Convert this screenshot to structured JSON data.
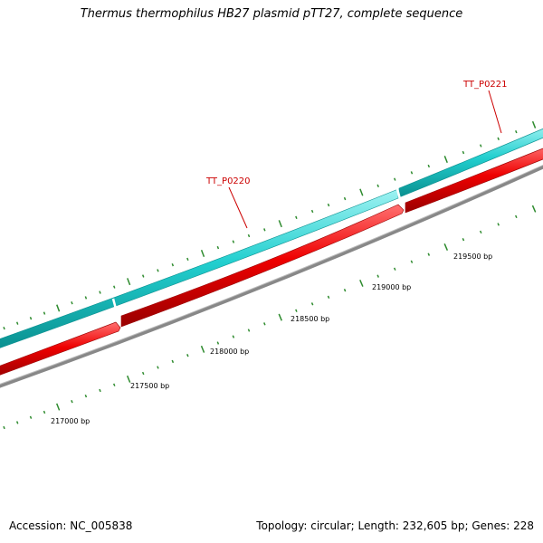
{
  "title": "Thermus thermophilus HB27 plasmid pTT27, complete sequence",
  "footer": {
    "accession": "Accession: NC_005838",
    "summary": "Topology: circular; Length: 232,605 bp; Genes: 228"
  },
  "genes": [
    {
      "name": "TT_P0220"
    },
    {
      "name": "TT_P0221"
    }
  ],
  "positions": [
    "217000 bp",
    "217500 bp",
    "218000 bp",
    "218500 bp",
    "219000 bp",
    "219500 bp"
  ],
  "colors": {
    "forward_strand": "#1fc9c9",
    "reverse_strand": "#ee0000",
    "backbone": "#888888",
    "tick": "#2e8b2e",
    "gene_label": "#cc0000"
  }
}
